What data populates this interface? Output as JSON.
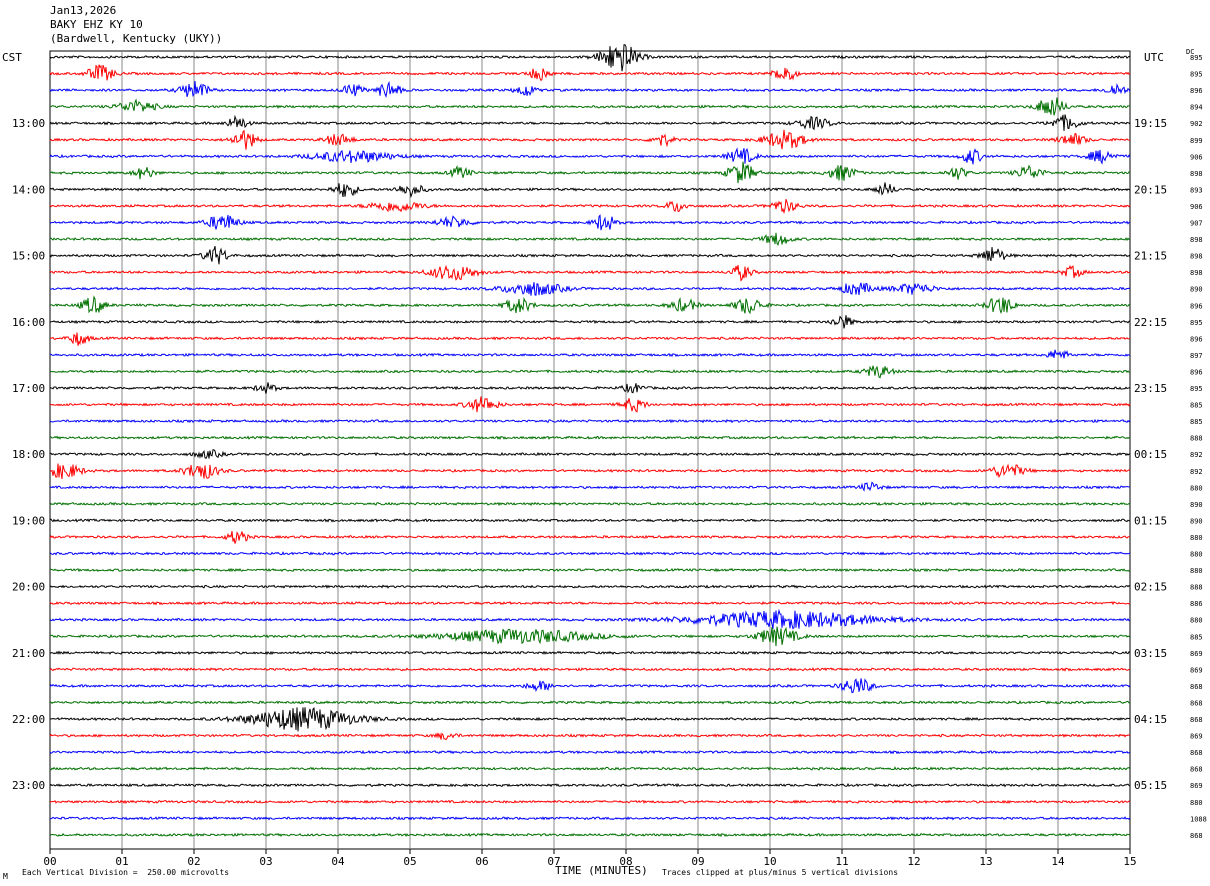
{
  "header": {
    "date": "Jan13,2026",
    "station": "BAKY EHZ KY 10",
    "location": "(Bardwell, Kentucky (UKY))"
  },
  "left_tz": "CST",
  "right_tz": "UTC",
  "dc_header": "DC",
  "footer": {
    "left_note": "Each Vertical Division =  250.00 microvolts",
    "right_note": "Traces clipped at plus/minus 5 vertical divisions",
    "corner_mark": "M"
  },
  "chart_data": {
    "type": "line",
    "title": "",
    "xlabel": "TIME (MINUTES)",
    "ylabel": "",
    "xlim": [
      0,
      15
    ],
    "x_ticks": [
      "00",
      "01",
      "02",
      "03",
      "04",
      "05",
      "06",
      "07",
      "08",
      "09",
      "10",
      "11",
      "12",
      "13",
      "14",
      "15"
    ],
    "trace_count": 48,
    "trace_colors": [
      "#000000",
      "#ff0000",
      "#0000ff",
      "#007000"
    ],
    "grid": true,
    "left_hour_labels": [
      "13:00",
      "14:00",
      "15:00",
      "16:00",
      "17:00",
      "18:00",
      "19:00",
      "20:00",
      "21:00",
      "22:00",
      "23:00"
    ],
    "right_hour_labels": [
      "19:15",
      "20:15",
      "21:15",
      "22:15",
      "23:15",
      "00:15",
      "01:15",
      "02:15",
      "03:15",
      "04:15",
      "05:15"
    ],
    "dc_offsets": [
      "895",
      "895",
      "896",
      "894",
      "902",
      "899",
      "906",
      "898",
      "893",
      "906",
      "907",
      "898",
      "898",
      "898",
      "890",
      "896",
      "895",
      "896",
      "897",
      "896",
      "895",
      "885",
      "885",
      "888",
      "892",
      "892",
      "880",
      "890",
      "890",
      "880",
      "880",
      "880",
      "888",
      "886",
      "880",
      "885",
      "869",
      "869",
      "868",
      "868",
      "868",
      "869",
      "868",
      "868",
      "869",
      "880",
      "1088",
      "868"
    ],
    "events": [
      {
        "trace": 0,
        "minute": 7.9,
        "amplitude": 4.0,
        "duration": 0.55
      },
      {
        "trace": 1,
        "minute": 0.7,
        "amplitude": 2.2,
        "duration": 0.4
      },
      {
        "trace": 1,
        "minute": 6.8,
        "amplitude": 1.8,
        "duration": 0.3
      },
      {
        "trace": 1,
        "minute": 10.2,
        "amplitude": 2.6,
        "duration": 0.3
      },
      {
        "trace": 2,
        "minute": 2.0,
        "amplitude": 2.4,
        "duration": 0.4
      },
      {
        "trace": 2,
        "minute": 4.2,
        "amplitude": 1.6,
        "duration": 0.3
      },
      {
        "trace": 2,
        "minute": 4.7,
        "amplitude": 2.2,
        "duration": 0.35
      },
      {
        "trace": 2,
        "minute": 6.6,
        "amplitude": 1.6,
        "duration": 0.3
      },
      {
        "trace": 2,
        "minute": 14.8,
        "amplitude": 1.6,
        "duration": 0.3
      },
      {
        "trace": 3,
        "minute": 1.2,
        "amplitude": 1.5,
        "duration": 0.6
      },
      {
        "trace": 3,
        "minute": 13.9,
        "amplitude": 2.8,
        "duration": 0.4
      },
      {
        "trace": 4,
        "minute": 2.6,
        "amplitude": 1.8,
        "duration": 0.3
      },
      {
        "trace": 4,
        "minute": 10.6,
        "amplitude": 1.5,
        "duration": 0.5
      },
      {
        "trace": 4,
        "minute": 14.1,
        "amplitude": 2.0,
        "duration": 0.4
      },
      {
        "trace": 5,
        "minute": 2.7,
        "amplitude": 2.6,
        "duration": 0.35
      },
      {
        "trace": 5,
        "minute": 4.0,
        "amplitude": 1.5,
        "duration": 0.4
      },
      {
        "trace": 5,
        "minute": 8.5,
        "amplitude": 1.6,
        "duration": 0.3
      },
      {
        "trace": 5,
        "minute": 10.2,
        "amplitude": 2.4,
        "duration": 0.6
      },
      {
        "trace": 5,
        "minute": 14.2,
        "amplitude": 1.6,
        "duration": 0.4
      },
      {
        "trace": 6,
        "minute": 4.2,
        "amplitude": 1.5,
        "duration": 1.2
      },
      {
        "trace": 6,
        "minute": 9.6,
        "amplitude": 2.0,
        "duration": 0.4
      },
      {
        "trace": 6,
        "minute": 12.8,
        "amplitude": 2.0,
        "duration": 0.3
      },
      {
        "trace": 6,
        "minute": 14.6,
        "amplitude": 1.6,
        "duration": 0.4
      },
      {
        "trace": 7,
        "minute": 1.3,
        "amplitude": 1.6,
        "duration": 0.3
      },
      {
        "trace": 7,
        "minute": 5.7,
        "amplitude": 1.5,
        "duration": 0.3
      },
      {
        "trace": 7,
        "minute": 9.6,
        "amplitude": 2.8,
        "duration": 0.4
      },
      {
        "trace": 7,
        "minute": 11.0,
        "amplitude": 2.0,
        "duration": 0.4
      },
      {
        "trace": 7,
        "minute": 12.6,
        "amplitude": 1.6,
        "duration": 0.3
      },
      {
        "trace": 7,
        "minute": 13.6,
        "amplitude": 1.8,
        "duration": 0.4
      },
      {
        "trace": 8,
        "minute": 4.1,
        "amplitude": 2.0,
        "duration": 0.35
      },
      {
        "trace": 8,
        "minute": 5.0,
        "amplitude": 1.6,
        "duration": 0.4
      },
      {
        "trace": 8,
        "minute": 11.6,
        "amplitude": 1.6,
        "duration": 0.3
      },
      {
        "trace": 9,
        "minute": 4.8,
        "amplitude": 1.4,
        "duration": 0.8
      },
      {
        "trace": 9,
        "minute": 8.7,
        "amplitude": 1.5,
        "duration": 0.3
      },
      {
        "trace": 9,
        "minute": 10.2,
        "amplitude": 1.6,
        "duration": 0.4
      },
      {
        "trace": 10,
        "minute": 2.4,
        "amplitude": 2.2,
        "duration": 0.45
      },
      {
        "trace": 10,
        "minute": 5.6,
        "amplitude": 1.4,
        "duration": 0.5
      },
      {
        "trace": 10,
        "minute": 7.7,
        "amplitude": 2.4,
        "duration": 0.3
      },
      {
        "trace": 11,
        "minute": 10.1,
        "amplitude": 1.6,
        "duration": 0.4
      },
      {
        "trace": 12,
        "minute": 2.3,
        "amplitude": 2.4,
        "duration": 0.35
      },
      {
        "trace": 12,
        "minute": 13.1,
        "amplitude": 2.2,
        "duration": 0.35
      },
      {
        "trace": 13,
        "minute": 5.6,
        "amplitude": 2.0,
        "duration": 0.7
      },
      {
        "trace": 13,
        "minute": 9.6,
        "amplitude": 2.0,
        "duration": 0.3
      },
      {
        "trace": 13,
        "minute": 14.2,
        "amplitude": 1.4,
        "duration": 0.3
      },
      {
        "trace": 14,
        "minute": 6.7,
        "amplitude": 1.8,
        "duration": 0.9
      },
      {
        "trace": 14,
        "minute": 11.2,
        "amplitude": 1.6,
        "duration": 0.5
      },
      {
        "trace": 14,
        "minute": 12.0,
        "amplitude": 1.4,
        "duration": 0.6
      },
      {
        "trace": 15,
        "minute": 0.6,
        "amplitude": 2.2,
        "duration": 0.35
      },
      {
        "trace": 15,
        "minute": 6.5,
        "amplitude": 2.0,
        "duration": 0.4
      },
      {
        "trace": 15,
        "minute": 8.8,
        "amplitude": 1.6,
        "duration": 0.4
      },
      {
        "trace": 15,
        "minute": 9.7,
        "amplitude": 2.2,
        "duration": 0.4
      },
      {
        "trace": 15,
        "minute": 13.2,
        "amplitude": 2.4,
        "duration": 0.4
      },
      {
        "trace": 16,
        "minute": 11.0,
        "amplitude": 1.8,
        "duration": 0.3
      },
      {
        "trace": 17,
        "minute": 0.4,
        "amplitude": 1.8,
        "duration": 0.3
      },
      {
        "trace": 18,
        "minute": 14.0,
        "amplitude": 1.4,
        "duration": 0.3
      },
      {
        "trace": 19,
        "minute": 11.5,
        "amplitude": 1.6,
        "duration": 0.4
      },
      {
        "trace": 20,
        "minute": 3.0,
        "amplitude": 1.3,
        "duration": 0.3
      },
      {
        "trace": 20,
        "minute": 8.1,
        "amplitude": 1.2,
        "duration": 0.3
      },
      {
        "trace": 21,
        "minute": 6.0,
        "amplitude": 2.0,
        "duration": 0.45
      },
      {
        "trace": 21,
        "minute": 8.1,
        "amplitude": 1.8,
        "duration": 0.35
      },
      {
        "trace": 24,
        "minute": 2.2,
        "amplitude": 1.0,
        "duration": 0.4
      },
      {
        "trace": 25,
        "minute": 0.2,
        "amplitude": 2.0,
        "duration": 0.5
      },
      {
        "trace": 25,
        "minute": 2.1,
        "amplitude": 2.2,
        "duration": 0.5
      },
      {
        "trace": 25,
        "minute": 13.3,
        "amplitude": 1.8,
        "duration": 0.5
      },
      {
        "trace": 26,
        "minute": 11.4,
        "amplitude": 1.2,
        "duration": 0.3
      },
      {
        "trace": 29,
        "minute": 2.6,
        "amplitude": 1.8,
        "duration": 0.3
      },
      {
        "trace": 34,
        "minute": 10.2,
        "amplitude": 2.2,
        "duration": 2.8
      },
      {
        "trace": 35,
        "minute": 6.5,
        "amplitude": 1.8,
        "duration": 2.2
      },
      {
        "trace": 35,
        "minute": 10.1,
        "amplitude": 2.4,
        "duration": 0.6
      },
      {
        "trace": 38,
        "minute": 6.8,
        "amplitude": 1.2,
        "duration": 0.4
      },
      {
        "trace": 38,
        "minute": 11.2,
        "amplitude": 2.2,
        "duration": 0.45
      },
      {
        "trace": 40,
        "minute": 3.5,
        "amplitude": 3.0,
        "duration": 1.6
      },
      {
        "trace": 41,
        "minute": 5.5,
        "amplitude": 1.0,
        "duration": 0.3
      }
    ]
  }
}
